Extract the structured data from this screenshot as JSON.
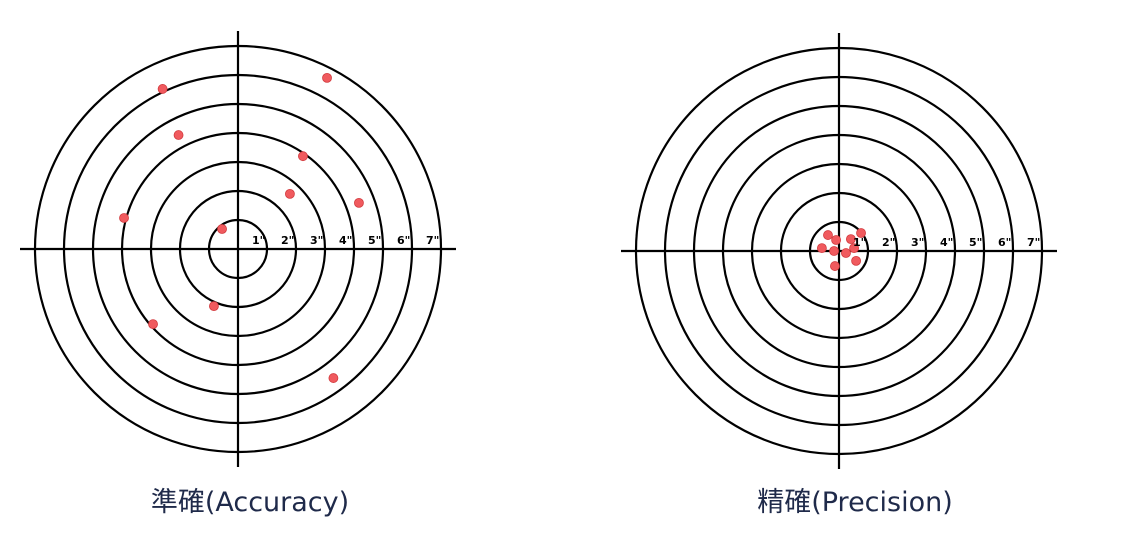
{
  "targets": [
    {
      "caption": "準確(Accuracy)",
      "ring_labels": [
        "1\"",
        "2\"",
        "3\"",
        "4\"",
        "5\"",
        "6\"",
        "7\""
      ],
      "hits": [
        [
          -2.6,
          5.52
        ],
        [
          3.07,
          5.9
        ],
        [
          -2.05,
          3.93
        ],
        [
          2.24,
          3.2
        ],
        [
          1.79,
          1.9
        ],
        [
          4.17,
          1.59
        ],
        [
          -3.93,
          1.07
        ],
        [
          -0.55,
          0.69
        ],
        [
          -0.83,
          -1.97
        ],
        [
          -2.93,
          -2.59
        ],
        [
          3.29,
          -4.45
        ]
      ]
    },
    {
      "caption": "精確(Precision)",
      "ring_labels": [
        "1\"",
        "2\"",
        "3\"",
        "4\"",
        "5\"",
        "6\"",
        "7\""
      ],
      "hits": [
        [
          -0.38,
          0.55
        ],
        [
          -0.1,
          0.38
        ],
        [
          0.41,
          0.41
        ],
        [
          0.76,
          0.62
        ],
        [
          -0.59,
          0.1
        ],
        [
          -0.17,
          0.0
        ],
        [
          0.24,
          -0.07
        ],
        [
          0.52,
          0.1
        ],
        [
          -0.14,
          -0.52
        ],
        [
          0.59,
          -0.34
        ]
      ]
    }
  ],
  "colors": {
    "hit": "#f05a5e",
    "hit_stroke": "#d23a3e",
    "line": "#000000",
    "caption": "#1f2a4a"
  }
}
